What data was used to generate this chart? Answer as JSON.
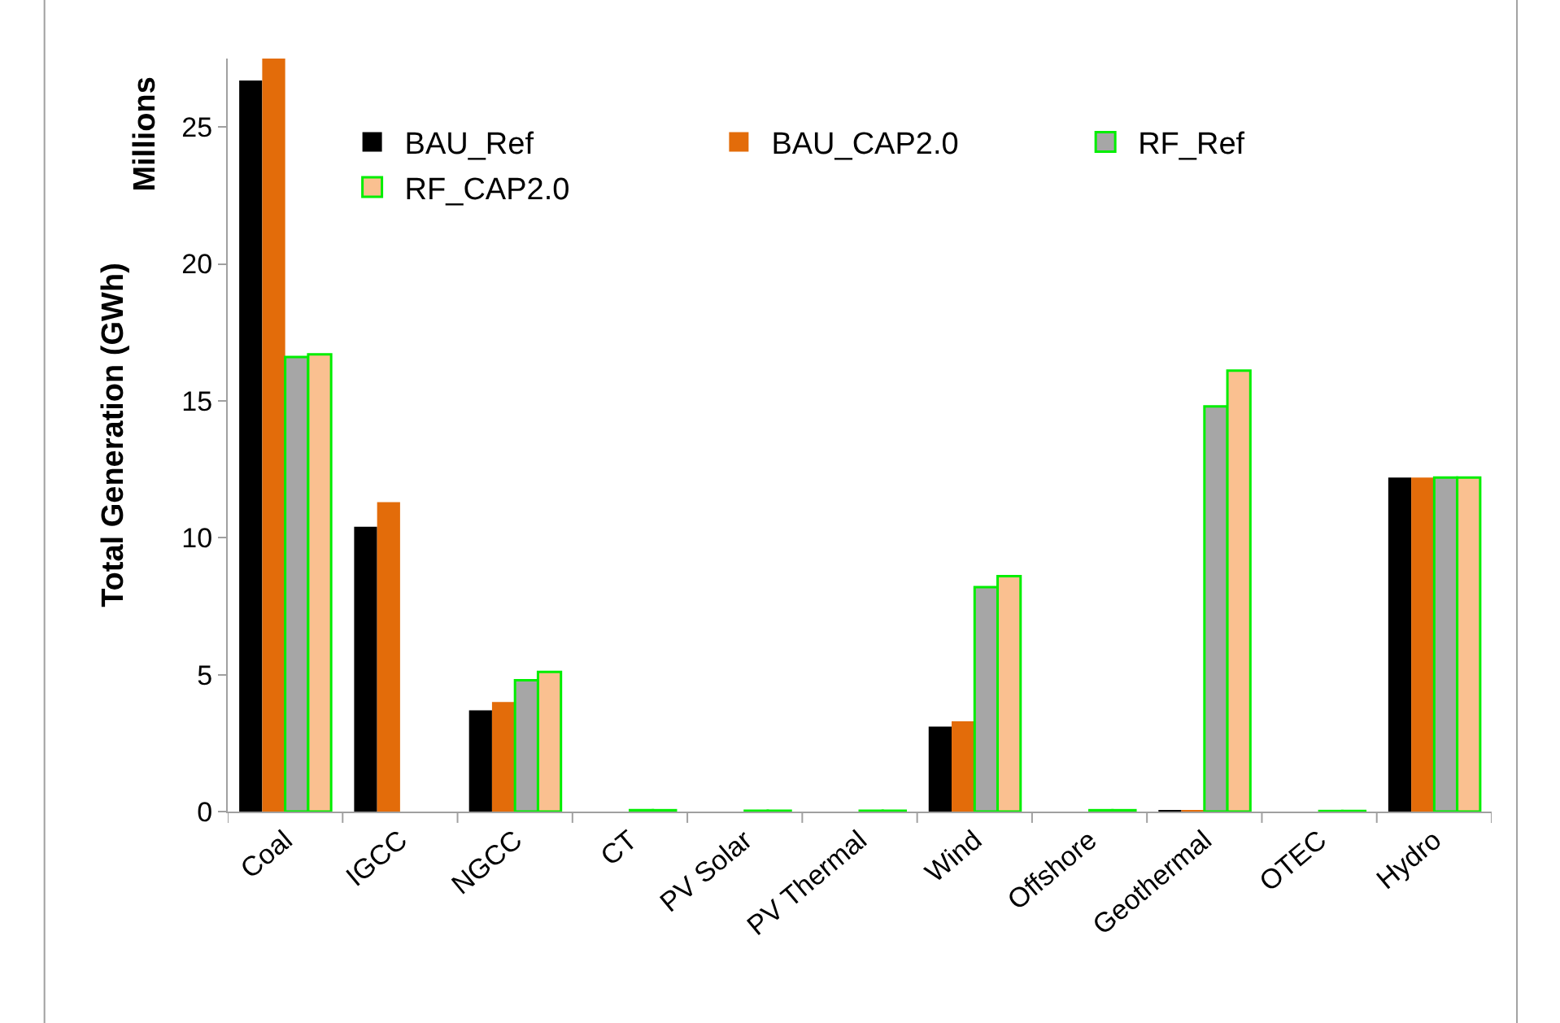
{
  "chart_data": {
    "type": "bar",
    "ylabel": "Total Generation (GWh)",
    "annotations": [
      "Millions"
    ],
    "categories": [
      "Coal",
      "IGCC",
      "NGCC",
      "CT",
      "PV Solar",
      "PV Thermal",
      "Wind",
      "Offshore",
      "Geothermal",
      "OTEC",
      "Hydro"
    ],
    "series": [
      {
        "name": "BAU_Ref",
        "color": "#000000",
        "values": [
          26.7,
          10.4,
          3.7,
          0,
          0,
          0,
          3.1,
          0,
          0.03,
          0,
          12.2
        ]
      },
      {
        "name": "BAU_CAP2.0",
        "color": "#e36c0a",
        "values": [
          27.5,
          11.3,
          4.0,
          0,
          0,
          0,
          3.3,
          0,
          0.03,
          0,
          12.2
        ]
      },
      {
        "name": "RF_Ref",
        "color": "#a6a6a6",
        "values": [
          16.6,
          null,
          4.8,
          0.05,
          0.03,
          0.03,
          8.2,
          0.05,
          14.8,
          0.02,
          12.2
        ]
      },
      {
        "name": "RF_CAP2.0",
        "color": "#fac090",
        "values": [
          16.7,
          null,
          5.1,
          0.05,
          0.03,
          0.03,
          8.6,
          0.05,
          16.1,
          0.02,
          12.2
        ]
      }
    ],
    "ylim": [
      0,
      27.5
    ],
    "yticks": [
      0,
      5,
      10,
      15,
      20,
      25
    ],
    "legend": "top"
  }
}
